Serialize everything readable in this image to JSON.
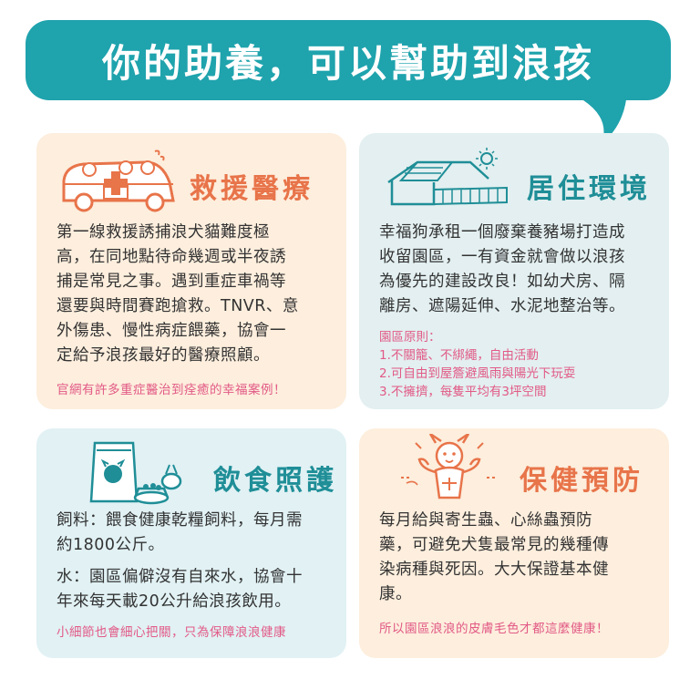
{
  "banner": {
    "title": "你的助養，可以幫助到浪孩"
  },
  "cards": {
    "rescue": {
      "heading": "救援醫療",
      "illustration": "van-with-cross-and-animals-icon",
      "lines": [
        "第一線救援誘捕浪犬貓難度極",
        "高，在同地點待命幾週或半夜誘",
        "捕是常見之事。遇到重症車禍等",
        "還要與時間賽跑搶救。TNVR、意",
        "外傷患、慢性病症餵藥，協會一",
        "定給予浪孩最好的醫療照顧。"
      ],
      "note": "官網有許多重症醫治到痊癒的幸福案例！"
    },
    "housing": {
      "heading": "居住環境",
      "illustration": "farm-shelter-icon",
      "lines": [
        "幸福狗承租一個廢棄養豬場打造成",
        "收留園區，一有資金就會做以浪孩",
        "為優先的建設改良！如幼犬房、隔",
        "離房、遮陽延伸、水泥地整治等。"
      ],
      "rules_title": "園區原則：",
      "rules": [
        "1.不關籠、不綁繩，自由活動",
        "2.可自由到屋簷避風雨與陽光下玩耍",
        "3.不擁擠，每隻平均有3坪空間"
      ]
    },
    "food": {
      "heading": "飲食照護",
      "illustration": "food-bag-and-bowls-icon",
      "lines": [
        "飼料：餵食健康乾糧飼料，每月需",
        "約1800公斤。"
      ],
      "lines2": [
        "水：園區偏僻沒有自來水，協會十",
        "年來每天載20公升給浪孩飲用。"
      ],
      "note": "小細節也會細心把關，只為保障浪浪健康"
    },
    "health": {
      "heading": "保健預防",
      "illustration": "strong-dog-icon",
      "lines": [
        "每月給與寄生蟲、心絲蟲預防",
        "藥，可避免犬隻最常見的幾種傳",
        "染病種與死因。大大保證基本健",
        "康。"
      ],
      "note": "所以園區浪浪的皮膚毛色才都這麼健康！"
    }
  }
}
